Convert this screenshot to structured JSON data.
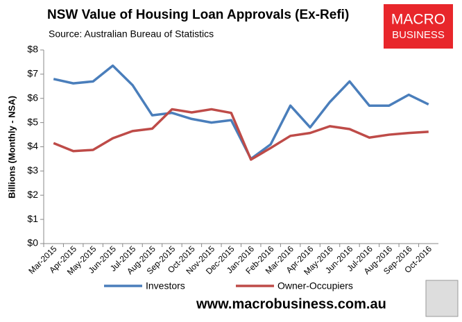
{
  "chart_data": {
    "type": "line",
    "title": "NSW Value of Housing Loan Approvals (Ex-Refi)",
    "subtitle": "Source: Australian Bureau of Statistics",
    "y_label": "Billions (Monthly - NSA)",
    "brand": [
      "MACRO",
      "BUSINESS"
    ],
    "website": "www.macrobusiness.com.au",
    "categories": [
      "Mar-2015",
      "Apr-2015",
      "May-2015",
      "Jun-2015",
      "Jul-2015",
      "Aug-2015",
      "Sep-2015",
      "Oct-2015",
      "Nov-2015",
      "Dec-2015",
      "Jan-2016",
      "Feb-2016",
      "Mar-2016",
      "Apr-2016",
      "May-2016",
      "Jun-2016",
      "Jul-2016",
      "Aug-2016",
      "Sep-2016",
      "Oct-2016"
    ],
    "series": [
      {
        "name": "Investors",
        "color": "#4a7ebb",
        "values": [
          6.8,
          6.62,
          6.7,
          7.35,
          6.55,
          5.3,
          5.4,
          5.15,
          5.0,
          5.1,
          3.5,
          4.1,
          5.7,
          4.8,
          5.85,
          6.7,
          5.7,
          5.7,
          6.15,
          5.75
        ]
      },
      {
        "name": "Owner-Occupiers",
        "color": "#be4b48",
        "values": [
          4.15,
          3.82,
          3.87,
          4.35,
          4.65,
          4.75,
          5.55,
          5.42,
          5.55,
          5.4,
          3.47,
          3.95,
          4.45,
          4.57,
          4.85,
          4.73,
          4.38,
          4.5,
          4.57,
          4.62
        ]
      }
    ],
    "ylim": [
      0,
      8
    ],
    "yticks": [
      {
        "value": 0,
        "label": "$0"
      },
      {
        "value": 1,
        "label": "$1"
      },
      {
        "value": 2,
        "label": "$2"
      },
      {
        "value": 3,
        "label": "$3"
      },
      {
        "value": 4,
        "label": "$4"
      },
      {
        "value": 5,
        "label": "$5"
      },
      {
        "value": 6,
        "label": "$6"
      },
      {
        "value": 7,
        "label": "$7"
      },
      {
        "value": 8,
        "label": "$8"
      }
    ],
    "grid": false,
    "legend": "bottom"
  }
}
